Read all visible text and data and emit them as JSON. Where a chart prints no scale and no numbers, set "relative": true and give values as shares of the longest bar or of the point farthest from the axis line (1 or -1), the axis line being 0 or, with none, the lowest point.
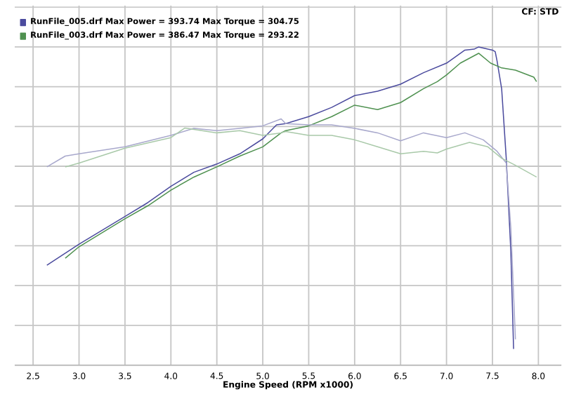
{
  "chart_data": {
    "type": "line",
    "relative": true,
    "xlabel": "Engine Speed (RPM x1000)",
    "annotations": [
      "CF: STD"
    ],
    "xlim": [
      2.3,
      8.25
    ],
    "xticks": [
      2.5,
      {
        "value": 3,
        "label": "3.0"
      },
      3.5,
      {
        "value": 4,
        "label": "4.0"
      },
      4.5,
      {
        "value": 5,
        "label": "5.0"
      },
      5.5,
      {
        "value": 6,
        "label": "6.0"
      },
      6.5,
      {
        "value": 7,
        "label": "7.0"
      },
      7.5,
      {
        "value": 8,
        "label": "8.0"
      }
    ],
    "grid": true,
    "legend": "top left",
    "marker": "none",
    "line_style": "solid",
    "series": [
      {
        "name": "RunFile_005.drf Max Power = 393.74    Max Torque = 304.75",
        "color": "#4b4b9e",
        "x": [
          2.65,
          3.0,
          3.5,
          3.75,
          4.0,
          4.25,
          4.5,
          4.75,
          5.0,
          5.15,
          5.25,
          5.5,
          5.75,
          6.0,
          6.25,
          6.5,
          6.75,
          7.0,
          7.2,
          7.3,
          7.35,
          7.45,
          7.5,
          7.53,
          7.55,
          7.6,
          7.65,
          7.7,
          7.73
        ],
        "values": [
          0.314,
          0.38,
          0.467,
          0.511,
          0.562,
          0.606,
          0.632,
          0.664,
          0.711,
          0.755,
          0.759,
          0.781,
          0.81,
          0.847,
          0.861,
          0.883,
          0.919,
          0.949,
          0.99,
          0.993,
          1,
          0.993,
          0.99,
          0.985,
          0.956,
          0.869,
          0.65,
          0.358,
          0.051
        ]
      },
      {
        "name": "RunFile_003.drf Max Power = 386.47    Max Torque = 293.22",
        "color": "#4f9150",
        "x": [
          2.85,
          3.0,
          3.5,
          3.75,
          4.0,
          4.25,
          4.5,
          4.75,
          5.0,
          5.2,
          5.25,
          5.5,
          5.75,
          6.0,
          6.25,
          6.5,
          6.75,
          6.9,
          7.0,
          7.15,
          7.35,
          7.48,
          7.6,
          7.75,
          7.95,
          7.98
        ],
        "values": [
          0.336,
          0.372,
          0.46,
          0.501,
          0.55,
          0.591,
          0.623,
          0.657,
          0.686,
          0.73,
          0.737,
          0.752,
          0.781,
          0.817,
          0.803,
          0.825,
          0.869,
          0.891,
          0.912,
          0.949,
          0.98,
          0.949,
          0.934,
          0.927,
          0.905,
          0.891
        ]
      },
      {
        "color": "#a8a8cc",
        "x": [
          2.65,
          2.85,
          3.0,
          3.5,
          4.0,
          4.25,
          4.5,
          4.75,
          5.0,
          5.2,
          5.25,
          5.5,
          5.75,
          6.0,
          6.25,
          6.5,
          6.75,
          7.0,
          7.2,
          7.4,
          7.55,
          7.65,
          7.7,
          7.75
        ],
        "values": [
          0.623,
          0.657,
          0.664,
          0.686,
          0.722,
          0.744,
          0.737,
          0.744,
          0.752,
          0.774,
          0.759,
          0.755,
          0.755,
          0.744,
          0.73,
          0.705,
          0.73,
          0.715,
          0.73,
          0.708,
          0.672,
          0.635,
          0.431,
          0.081
        ]
      },
      {
        "color": "#a9c9a9",
        "x": [
          2.85,
          3.0,
          3.5,
          4.0,
          4.15,
          4.5,
          4.75,
          5.0,
          5.2,
          5.25,
          5.5,
          5.75,
          6.0,
          6.25,
          6.5,
          6.75,
          6.9,
          7.0,
          7.25,
          7.45,
          7.6,
          7.75,
          7.98
        ],
        "values": [
          0.623,
          0.635,
          0.682,
          0.715,
          0.745,
          0.73,
          0.737,
          0.722,
          0.73,
          0.734,
          0.722,
          0.722,
          0.708,
          0.686,
          0.664,
          0.672,
          0.667,
          0.679,
          0.7,
          0.686,
          0.65,
          0.628,
          0.591
        ]
      }
    ]
  }
}
